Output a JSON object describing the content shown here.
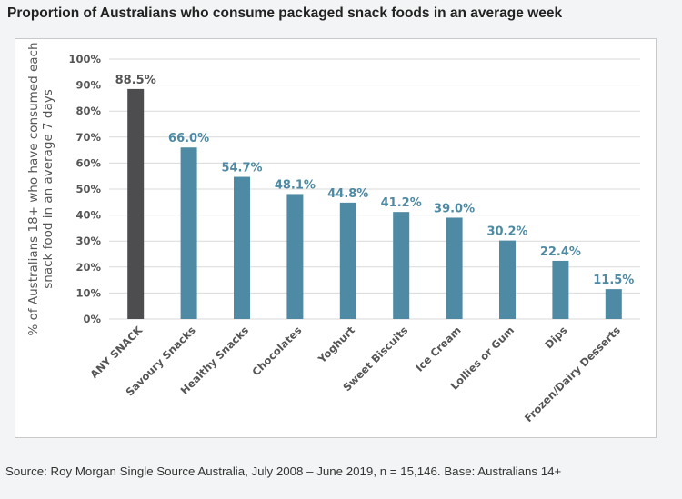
{
  "title": "Proportion of Australians who consume packaged snack foods in an average week",
  "source": "Source: Roy Morgan Single Source Australia, July 2008 – June 2019, n = 15,146. Base: Australians 14+",
  "colors": {
    "highlight_bar": "#4d4d4f",
    "bar": "#4e8aa3",
    "label_dark": "#555555",
    "label_blue": "#4e8aa3",
    "grid": "#d9d9d9"
  },
  "chart_data": {
    "type": "bar",
    "ylabel": "% of Australians 18+ who have consumed each snack food in an average 7 days",
    "ylabel_lines": [
      "% of Australians 18+ who have consumed each",
      "snack food in an average 7 days"
    ],
    "ylim": [
      0,
      100
    ],
    "yticks": [
      0,
      10,
      20,
      30,
      40,
      50,
      60,
      70,
      80,
      90,
      100
    ],
    "ytick_suffix": "%",
    "grid": true,
    "categories": [
      "ANY SNACK",
      "Savoury Snacks",
      "Healthy Snacks",
      "Chocolates",
      "Yoghurt",
      "Sweet Biscuits",
      "Ice Cream",
      "Lollies or Gum",
      "Dips",
      "Frozen/Dairy Desserts"
    ],
    "values": [
      88.5,
      66.0,
      54.7,
      48.1,
      44.8,
      41.2,
      39.0,
      30.2,
      22.4,
      11.5
    ],
    "data_labels": [
      "88.5%",
      "66.0%",
      "54.7%",
      "48.1%",
      "44.8%",
      "41.2%",
      "39.0%",
      "30.2%",
      "22.4%",
      "11.5%"
    ],
    "highlight_index": 0
  }
}
